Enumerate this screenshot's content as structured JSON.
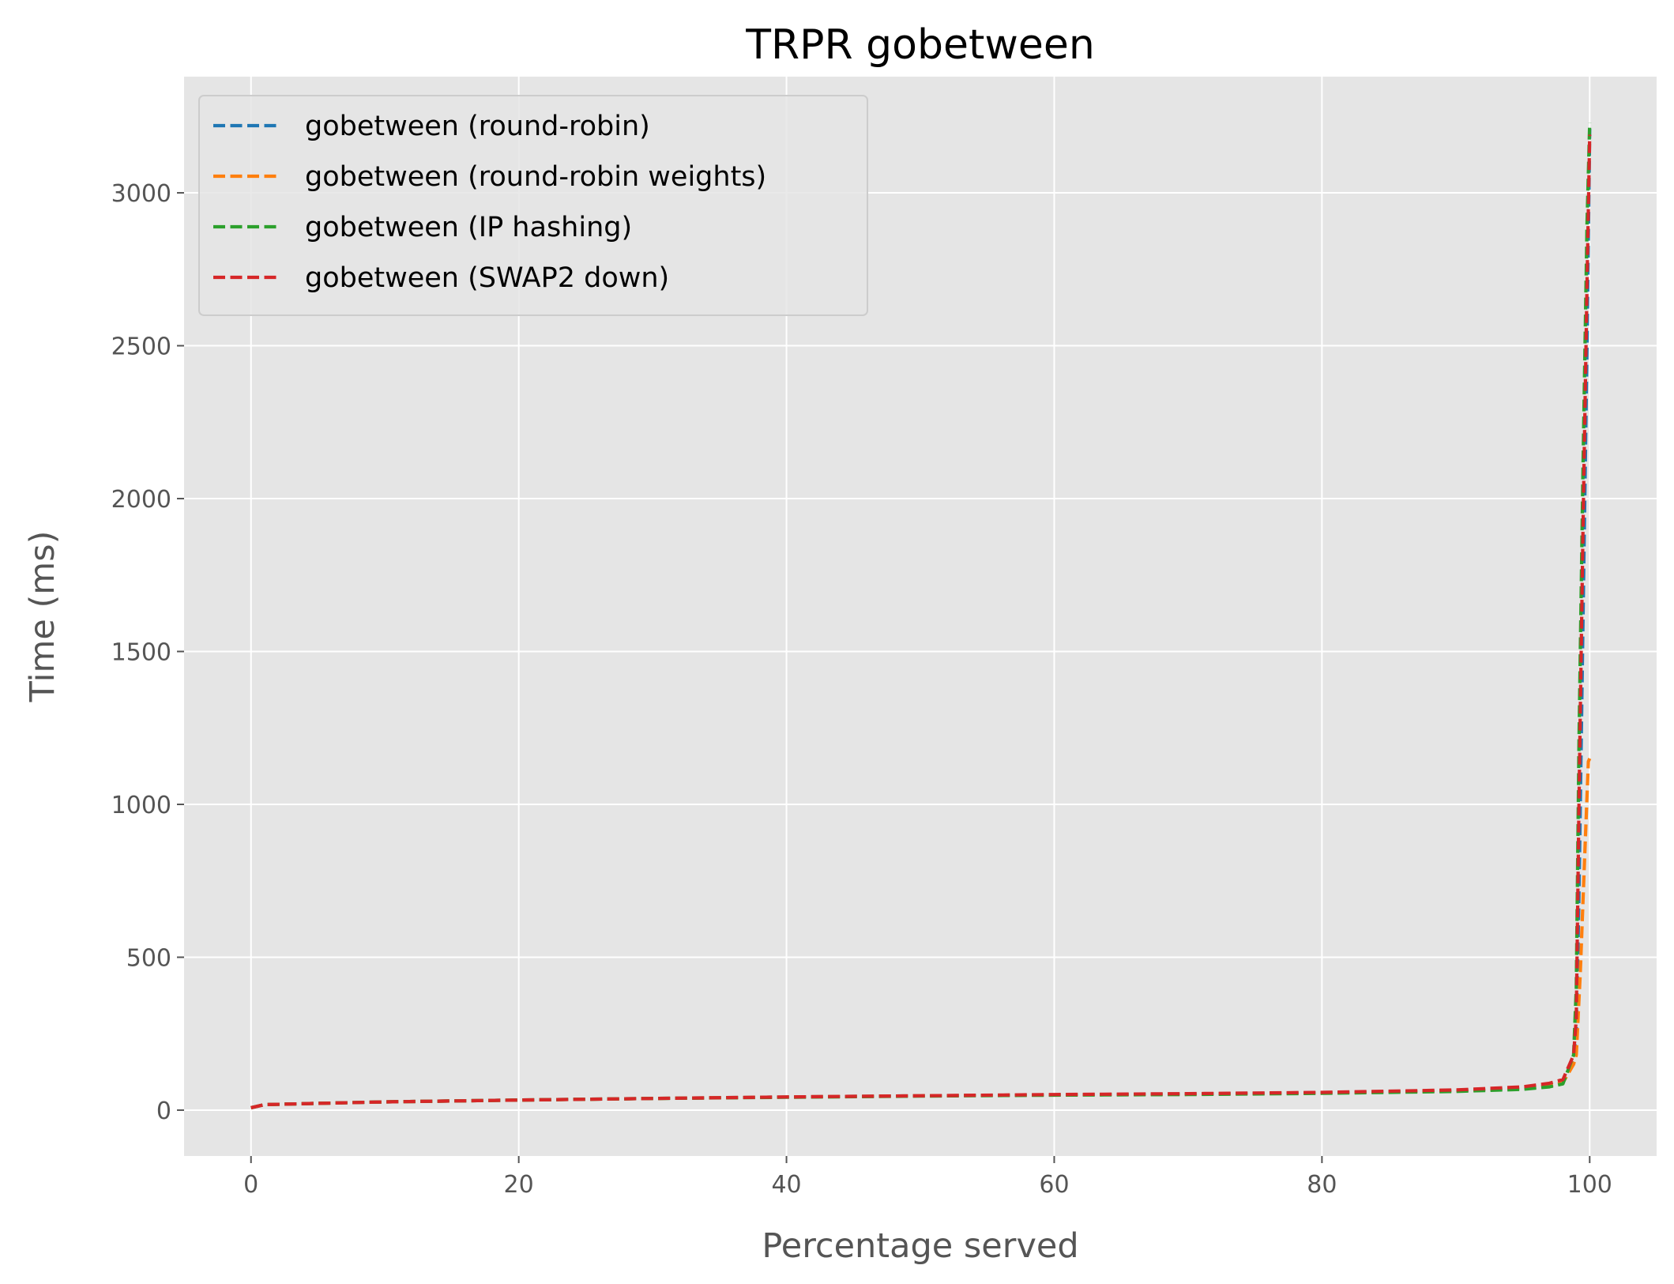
{
  "chart_data": {
    "type": "line",
    "title": "TRPR gobetween",
    "xlabel": "Percentage served",
    "ylabel": "Time (ms)",
    "xlim": [
      -5,
      105
    ],
    "ylim": [
      -150,
      3380
    ],
    "xticks": [
      0,
      20,
      40,
      60,
      80,
      100
    ],
    "yticks": [
      0,
      500,
      1000,
      1500,
      2000,
      2500,
      3000
    ],
    "grid": true,
    "legend_position": "upper-left",
    "line_style": "dashed",
    "series": [
      {
        "name": "gobetween (round-robin)",
        "color": "#1f77b4",
        "points": [
          [
            0,
            8
          ],
          [
            1,
            18
          ],
          [
            5,
            22
          ],
          [
            10,
            27
          ],
          [
            20,
            33
          ],
          [
            30,
            38
          ],
          [
            40,
            43
          ],
          [
            50,
            47
          ],
          [
            60,
            50
          ],
          [
            70,
            53
          ],
          [
            80,
            57
          ],
          [
            90,
            64
          ],
          [
            95,
            72
          ],
          [
            97,
            80
          ],
          [
            98,
            90
          ],
          [
            98.8,
            170
          ],
          [
            99,
            250
          ],
          [
            99.2,
            700
          ],
          [
            99.5,
            1600
          ],
          [
            99.8,
            2500
          ],
          [
            100,
            3210
          ]
        ]
      },
      {
        "name": "gobetween (round-robin weights)",
        "color": "#ff7f0e",
        "points": [
          [
            0,
            8
          ],
          [
            1,
            18
          ],
          [
            5,
            22
          ],
          [
            10,
            27
          ],
          [
            20,
            33
          ],
          [
            30,
            38
          ],
          [
            40,
            43
          ],
          [
            50,
            47
          ],
          [
            60,
            50
          ],
          [
            70,
            53
          ],
          [
            80,
            57
          ],
          [
            90,
            64
          ],
          [
            95,
            72
          ],
          [
            97,
            80
          ],
          [
            98,
            90
          ],
          [
            98.8,
            150
          ],
          [
            99,
            180
          ],
          [
            99.3,
            450
          ],
          [
            99.6,
            800
          ],
          [
            99.9,
            1140
          ],
          [
            100,
            1150
          ]
        ]
      },
      {
        "name": "gobetween (IP hashing)",
        "color": "#2ca02c",
        "points": [
          [
            0,
            8
          ],
          [
            1,
            18
          ],
          [
            5,
            22
          ],
          [
            10,
            27
          ],
          [
            20,
            33
          ],
          [
            30,
            38
          ],
          [
            40,
            42
          ],
          [
            50,
            46
          ],
          [
            60,
            49
          ],
          [
            70,
            51
          ],
          [
            80,
            55
          ],
          [
            90,
            61
          ],
          [
            95,
            68
          ],
          [
            97,
            76
          ],
          [
            98,
            86
          ],
          [
            98.8,
            180
          ],
          [
            99,
            400
          ],
          [
            99.2,
            1200
          ],
          [
            99.5,
            2100
          ],
          [
            99.8,
            2900
          ],
          [
            100,
            3230
          ]
        ]
      },
      {
        "name": "gobetween (SWAP2 down)",
        "color": "#d62728",
        "points": [
          [
            0,
            8
          ],
          [
            1,
            18
          ],
          [
            5,
            22
          ],
          [
            10,
            27
          ],
          [
            20,
            33
          ],
          [
            30,
            38
          ],
          [
            40,
            43
          ],
          [
            50,
            47
          ],
          [
            60,
            51
          ],
          [
            70,
            54
          ],
          [
            80,
            58
          ],
          [
            90,
            66
          ],
          [
            95,
            76
          ],
          [
            97,
            88
          ],
          [
            98,
            100
          ],
          [
            98.8,
            180
          ],
          [
            99,
            300
          ],
          [
            99.2,
            1000
          ],
          [
            99.5,
            1900
          ],
          [
            99.8,
            2700
          ],
          [
            100,
            3190
          ]
        ]
      }
    ]
  }
}
